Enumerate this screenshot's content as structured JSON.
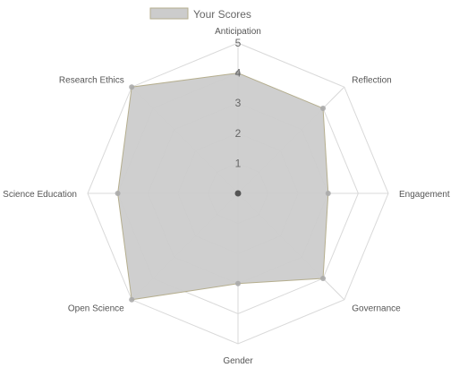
{
  "chart_data": {
    "type": "radar",
    "labels": [
      "Anticipation",
      "Reflection",
      "Engagement",
      "Governance",
      "Gender",
      "Open Science",
      "Science Education",
      "Research Ethics"
    ],
    "series": [
      {
        "name": "Your Scores",
        "values": [
          4,
          4,
          3,
          4,
          3,
          5,
          4,
          5
        ]
      }
    ],
    "rlim": [
      0,
      5
    ],
    "ticks": [
      "1",
      "2",
      "3",
      "4",
      "5"
    ],
    "legend_position": "top-left",
    "colors": {
      "fill": "#cccccc",
      "fill_opacity": 0.95,
      "stroke": "#b5ae8e",
      "grid": "#d9d9d9",
      "point": "#aaaaaa",
      "center": "#555555"
    }
  }
}
